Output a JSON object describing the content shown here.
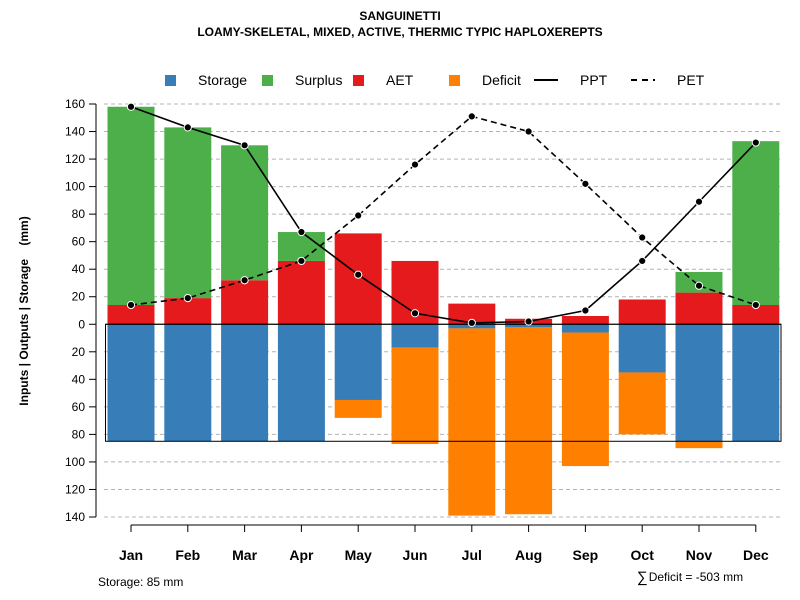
{
  "chart_data": {
    "type": "bar",
    "title": "SANGUINETTI",
    "subtitle": "LOAMY-SKELETAL, MIXED, ACTIVE, THERMIC TYPIC HAPLOXEREPTS",
    "ylabel": "Inputs | Outputs | Storage    (mm)",
    "categories": [
      "Jan",
      "Feb",
      "Mar",
      "Apr",
      "May",
      "Jun",
      "Jul",
      "Aug",
      "Sep",
      "Oct",
      "Nov",
      "Dec"
    ],
    "ylim": [
      -140,
      160
    ],
    "y_ticks": [
      160,
      140,
      120,
      100,
      80,
      60,
      40,
      20,
      0,
      -20,
      -40,
      -60,
      -80,
      -100,
      -120,
      -140
    ],
    "y_tick_labels": [
      "160",
      "140",
      "120",
      "100",
      "80",
      "60",
      "40",
      "20",
      "0",
      "20",
      "40",
      "60",
      "80",
      "100",
      "120",
      "140"
    ],
    "storage_capacity": 85,
    "legend": [
      {
        "label": "Storage",
        "kind": "square",
        "color": "#377EB8"
      },
      {
        "label": "Surplus",
        "kind": "square",
        "color": "#4DAF4A"
      },
      {
        "label": "AET",
        "kind": "square",
        "color": "#E41A1C"
      },
      {
        "label": "Deficit",
        "kind": "square",
        "color": "#FF7F00"
      },
      {
        "label": "PPT",
        "kind": "solid-line",
        "color": "#000000"
      },
      {
        "label": "PET",
        "kind": "dashed-line",
        "color": "#000000"
      }
    ],
    "series": [
      {
        "name": "AET",
        "color": "#E41A1C",
        "values": [
          14,
          19,
          32,
          46,
          66,
          46,
          15,
          4,
          6,
          18,
          23,
          14
        ]
      },
      {
        "name": "Surplus",
        "color": "#4DAF4A",
        "values": [
          144,
          124,
          98,
          21,
          0,
          0,
          0,
          0,
          0,
          0,
          15,
          119
        ]
      },
      {
        "name": "Storage",
        "color": "#377EB8",
        "values": [
          85,
          85,
          85,
          85,
          55,
          17,
          3,
          2,
          6,
          35,
          85,
          85
        ]
      },
      {
        "name": "Deficit",
        "color": "#FF7F00",
        "values": [
          0,
          0,
          0,
          0,
          13,
          70,
          136,
          136,
          97,
          45,
          5,
          0
        ]
      },
      {
        "name": "PPT",
        "color": "#000000",
        "values": [
          158,
          143,
          130,
          67,
          36,
          8,
          1,
          2,
          10,
          46,
          89,
          132
        ]
      },
      {
        "name": "PET",
        "color": "#000000",
        "values": [
          14,
          19,
          32,
          46,
          79,
          116,
          151,
          140,
          102,
          63,
          28,
          14
        ]
      }
    ]
  },
  "footer": {
    "storage_note": "Storage: 85 mm",
    "deficit_symbol": "∑",
    "deficit_note": "Deficit = -503 mm"
  }
}
